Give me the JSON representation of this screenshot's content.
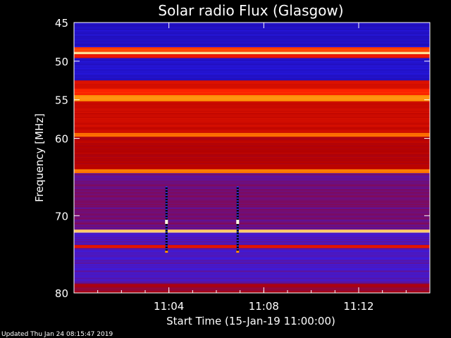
{
  "chart_data": {
    "type": "heatmap",
    "title": "Solar radio Flux (Glasgow)",
    "ylabel": "Frequency [MHz]",
    "xlabel": "Start Time (15-Jan-19 11:00:00)",
    "x_unit": "minutes after 11:00",
    "xlim": [
      0,
      15
    ],
    "ylim": [
      45,
      80
    ],
    "y_inverted": true,
    "x_ticks": [
      {
        "value": 4,
        "label": "11:04"
      },
      {
        "value": 8,
        "label": "11:08"
      },
      {
        "value": 12,
        "label": "11:12"
      }
    ],
    "y_ticks": [
      {
        "value": 45,
        "label": "45"
      },
      {
        "value": 50,
        "label": "50"
      },
      {
        "value": 55,
        "label": "55"
      },
      {
        "value": 60,
        "label": "60"
      },
      {
        "value": 70,
        "label": "70"
      },
      {
        "value": 80,
        "label": "80"
      }
    ],
    "colormap": [
      "#000000",
      "#1a0080",
      "#2a20ff",
      "#b00000",
      "#ff2000",
      "#ff9000",
      "#ffffd0"
    ],
    "frequency_bands": [
      {
        "from": 45.0,
        "to": 48.2,
        "level": 0.26
      },
      {
        "from": 48.2,
        "to": 48.8,
        "level": 0.72
      },
      {
        "from": 48.8,
        "to": 49.1,
        "level": 0.95
      },
      {
        "from": 49.1,
        "to": 49.6,
        "level": 0.62
      },
      {
        "from": 49.6,
        "to": 52.5,
        "level": 0.27
      },
      {
        "from": 52.5,
        "to": 53.6,
        "level": 0.58
      },
      {
        "from": 53.6,
        "to": 54.4,
        "level": 0.68
      },
      {
        "from": 54.4,
        "to": 55.2,
        "level": 0.82
      },
      {
        "from": 55.2,
        "to": 59.3,
        "level": 0.56
      },
      {
        "from": 59.3,
        "to": 59.8,
        "level": 0.78
      },
      {
        "from": 59.8,
        "to": 64.0,
        "level": 0.52
      },
      {
        "from": 64.0,
        "to": 64.5,
        "level": 0.8
      },
      {
        "from": 64.5,
        "to": 71.8,
        "level": 0.42
      },
      {
        "from": 71.8,
        "to": 72.2,
        "level": 0.93
      },
      {
        "from": 72.2,
        "to": 73.8,
        "level": 0.38
      },
      {
        "from": 73.8,
        "to": 74.2,
        "level": 0.62
      },
      {
        "from": 74.2,
        "to": 78.8,
        "level": 0.38
      },
      {
        "from": 78.8,
        "to": 80.0,
        "level": 0.48
      }
    ],
    "bursts": [
      {
        "x": 3.9,
        "from": 66.2,
        "to": 74.8
      },
      {
        "x": 6.9,
        "from": 66.2,
        "to": 74.8
      }
    ]
  },
  "footer": {
    "updated": "Updated Thu Jan 24 08:15:47 2019"
  }
}
